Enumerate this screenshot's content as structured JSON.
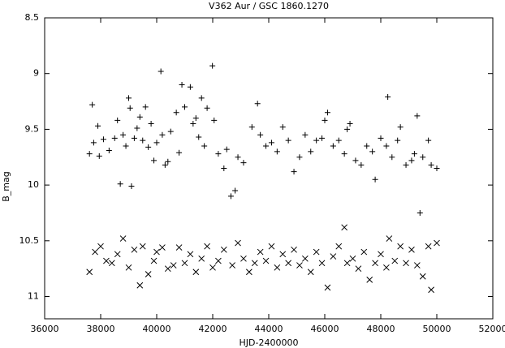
{
  "chart_data": {
    "type": "scatter",
    "title": "V362 Aur / GSC 1860.1270",
    "x_label": "HJD-2400000",
    "y_label": "B_mag",
    "xlim": [
      36000,
      52000
    ],
    "xticks": [
      36000,
      38000,
      40000,
      42000,
      44000,
      46000,
      48000,
      50000,
      52000
    ],
    "ylim": [
      8.5,
      11.2
    ],
    "yticks": [
      8.5,
      9,
      9.5,
      10,
      10.5,
      11
    ],
    "y_reversed": true,
    "grid": false,
    "series": [
      {
        "marker": "+",
        "color": "#000000",
        "x": [
          37600,
          37700,
          37750,
          37900,
          37950,
          38100,
          38300,
          38500,
          38600,
          38700,
          38800,
          38900,
          39000,
          39050,
          39100,
          39200,
          39300,
          39400,
          39500,
          39600,
          39700,
          39800,
          39900,
          40000,
          40150,
          40200,
          40300,
          40400,
          40500,
          40700,
          40800,
          40900,
          41000,
          41200,
          41300,
          41400,
          41500,
          41600,
          41700,
          41800,
          41990,
          42050,
          42200,
          42400,
          42500,
          42650,
          42800,
          42900,
          43100,
          43400,
          43600,
          43700,
          43900,
          44100,
          44300,
          44500,
          44700,
          44900,
          45100,
          45300,
          45500,
          45700,
          45900,
          46000,
          46100,
          46300,
          46500,
          46700,
          46800,
          46900,
          47100,
          47300,
          47500,
          47700,
          47800,
          48000,
          48200,
          48250,
          48400,
          48600,
          48700,
          48900,
          49100,
          49200,
          49300,
          49400,
          49500,
          49700,
          49800,
          50000
        ],
        "values": [
          9.72,
          9.28,
          9.62,
          9.47,
          9.74,
          9.59,
          9.69,
          9.58,
          9.42,
          9.99,
          9.55,
          9.65,
          9.22,
          9.31,
          10.01,
          9.58,
          9.49,
          9.39,
          9.6,
          9.3,
          9.66,
          9.45,
          9.78,
          9.62,
          8.98,
          9.55,
          9.82,
          9.79,
          9.52,
          9.35,
          9.71,
          9.1,
          9.3,
          9.12,
          9.45,
          9.4,
          9.57,
          9.22,
          9.65,
          9.31,
          8.93,
          9.42,
          9.72,
          9.85,
          9.68,
          10.1,
          10.05,
          9.75,
          9.8,
          9.48,
          9.27,
          9.55,
          9.65,
          9.62,
          9.7,
          9.48,
          9.6,
          9.88,
          9.75,
          9.55,
          9.7,
          9.6,
          9.58,
          9.42,
          9.35,
          9.65,
          9.6,
          9.72,
          9.5,
          9.45,
          9.78,
          9.82,
          9.65,
          9.7,
          9.95,
          9.58,
          9.65,
          9.21,
          9.75,
          9.6,
          9.48,
          9.82,
          9.78,
          9.72,
          9.38,
          10.25,
          9.75,
          9.6,
          9.82,
          9.85
        ]
      },
      {
        "marker": "x",
        "color": "#000000",
        "x": [
          37600,
          37800,
          38000,
          38200,
          38400,
          38600,
          38800,
          39000,
          39200,
          39400,
          39500,
          39700,
          39900,
          40000,
          40200,
          40400,
          40600,
          40800,
          41000,
          41200,
          41400,
          41600,
          41800,
          42000,
          42200,
          42400,
          42700,
          42900,
          43100,
          43300,
          43500,
          43700,
          43900,
          44100,
          44300,
          44500,
          44700,
          44900,
          45100,
          45300,
          45500,
          45700,
          45900,
          46100,
          46300,
          46500,
          46700,
          46800,
          47000,
          47200,
          47400,
          47600,
          47800,
          48000,
          48200,
          48300,
          48500,
          48700,
          48900,
          49100,
          49300,
          49500,
          49700,
          49800,
          50000
        ],
        "values": [
          10.78,
          10.6,
          10.55,
          10.68,
          10.7,
          10.62,
          10.48,
          10.74,
          10.58,
          10.9,
          10.55,
          10.8,
          10.68,
          10.6,
          10.56,
          10.75,
          10.72,
          10.56,
          10.7,
          10.62,
          10.78,
          10.66,
          10.55,
          10.74,
          10.68,
          10.58,
          10.72,
          10.52,
          10.66,
          10.78,
          10.7,
          10.6,
          10.68,
          10.55,
          10.74,
          10.62,
          10.7,
          10.58,
          10.72,
          10.66,
          10.78,
          10.6,
          10.7,
          10.92,
          10.64,
          10.55,
          10.38,
          10.7,
          10.66,
          10.75,
          10.6,
          10.85,
          10.7,
          10.62,
          10.74,
          10.48,
          10.68,
          10.55,
          10.7,
          10.58,
          10.72,
          10.82,
          10.55,
          10.94,
          10.52
        ]
      }
    ]
  }
}
